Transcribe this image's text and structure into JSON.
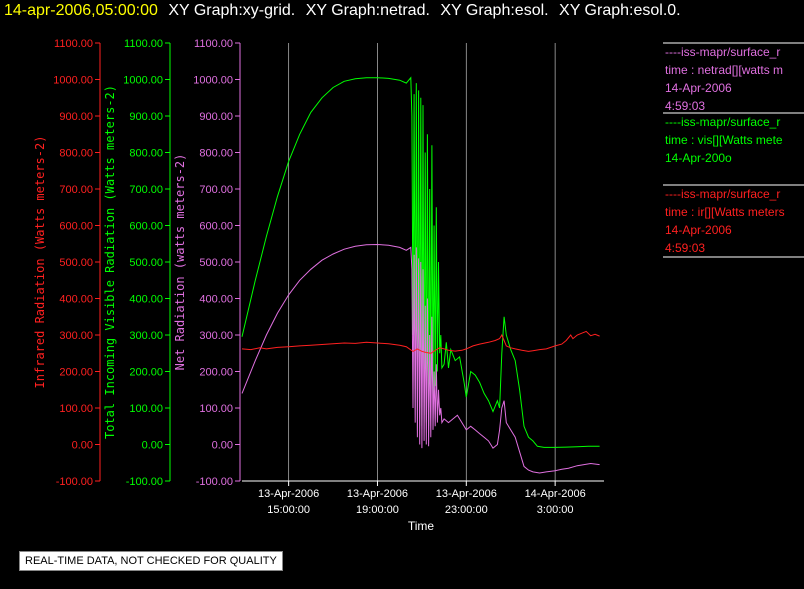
{
  "header": {
    "timestamp": "14-apr-2006,05:00:00",
    "titles": [
      "XY Graph:xy-grid.",
      "XY Graph:netrad.",
      "XY Graph:esol.",
      "XY Graph:esol.0."
    ]
  },
  "footer_note": "REAL-TIME DATA, NOT CHECKED FOR QUALITY",
  "legend": [
    {
      "color": "#e070e0",
      "lines": [
        "----iss-mapr/surface_r",
        "time : netrad[][watts m",
        "14-Apr-2006",
        "4:59:03"
      ]
    },
    {
      "color": "#00ff00",
      "lines": [
        "----iss-mapr/surface_r",
        "time : vis[][Watts mete",
        "14-Apr-200o"
      ]
    },
    {
      "color": "#ff2020",
      "lines": [
        "----iss-mapr/surface_r",
        "time : ir[][Watts meters",
        "14-Apr-2006",
        "4:59:03"
      ]
    }
  ],
  "colors": {
    "ir": "#ff2020",
    "vis": "#00ff00",
    "net": "#e070e0",
    "grid": "#aaaaaa"
  },
  "chart_data": {
    "type": "line",
    "xlabel": "Time",
    "x_units": "hours since 13-Apr-2006 00:00",
    "xlim": [
      12.9,
      29.2
    ],
    "x_ticks": [
      {
        "value": 15,
        "line1": "13-Apr-2006",
        "line2": "15:00:00"
      },
      {
        "value": 19,
        "line1": "13-Apr-2006",
        "line2": "19:00:00"
      },
      {
        "value": 23,
        "line1": "13-Apr-2006",
        "line2": "23:00:00"
      },
      {
        "value": 27,
        "line1": "14-Apr-2006",
        "line2": "3:00:00"
      }
    ],
    "grid": true,
    "ylim": [
      -100,
      1100
    ],
    "y_ticks": [
      "1100.00",
      "1000.00",
      "900.00",
      "800.00",
      "700.00",
      "600.00",
      "500.00",
      "400.00",
      "300.00",
      "200.00",
      "100.00",
      "0.00",
      "-100.00"
    ],
    "y_axes": [
      {
        "label": "Infrared Radiation (Watts meters-2)",
        "color": "#ff2020"
      },
      {
        "label": "Total Incoming Visible Radiation (Watts meters-2)",
        "color": "#00ff00"
      },
      {
        "label": "Net Radiation (watts meters-2)",
        "color": "#e070e0"
      }
    ],
    "series": [
      {
        "key": "vis",
        "color": "#00ff00",
        "points": [
          [
            12.9,
            295
          ],
          [
            13.5,
            450
          ],
          [
            14.0,
            570
          ],
          [
            14.5,
            680
          ],
          [
            15.0,
            775
          ],
          [
            15.5,
            850
          ],
          [
            16.0,
            910
          ],
          [
            16.5,
            950
          ],
          [
            17.0,
            978
          ],
          [
            17.5,
            995
          ],
          [
            18.0,
            1002
          ],
          [
            18.5,
            1005
          ],
          [
            19.0,
            1005
          ],
          [
            19.5,
            1003
          ],
          [
            20.0,
            998
          ],
          [
            20.3,
            990
          ],
          [
            20.5,
            1005
          ],
          [
            20.55,
            900
          ],
          [
            20.6,
            300
          ],
          [
            20.65,
            960
          ],
          [
            20.7,
            200
          ],
          [
            20.75,
            990
          ],
          [
            20.8,
            150
          ],
          [
            20.85,
            970
          ],
          [
            20.9,
            100
          ],
          [
            20.95,
            950
          ],
          [
            21.0,
            50
          ],
          [
            21.05,
            930
          ],
          [
            21.1,
            80
          ],
          [
            21.15,
            800
          ],
          [
            21.2,
            60
          ],
          [
            21.25,
            850
          ],
          [
            21.3,
            50
          ],
          [
            21.35,
            700
          ],
          [
            21.4,
            90
          ],
          [
            21.45,
            820
          ],
          [
            21.5,
            130
          ],
          [
            21.55,
            600
          ],
          [
            21.6,
            160
          ],
          [
            21.65,
            650
          ],
          [
            21.7,
            200
          ],
          [
            21.75,
            500
          ],
          [
            21.8,
            250
          ],
          [
            21.85,
            300
          ],
          [
            21.9,
            210
          ],
          [
            22.0,
            220
          ],
          [
            22.1,
            280
          ],
          [
            22.2,
            210
          ],
          [
            22.3,
            260
          ],
          [
            22.5,
            230
          ],
          [
            22.7,
            240
          ],
          [
            22.9,
            170
          ],
          [
            23.0,
            130
          ],
          [
            23.2,
            200
          ],
          [
            23.4,
            190
          ],
          [
            23.6,
            170
          ],
          [
            23.8,
            140
          ],
          [
            24.0,
            120
          ],
          [
            24.2,
            90
          ],
          [
            24.4,
            120
          ],
          [
            24.5,
            100
          ],
          [
            24.6,
            250
          ],
          [
            24.7,
            350
          ],
          [
            24.8,
            300
          ],
          [
            24.9,
            280
          ],
          [
            25.0,
            260
          ],
          [
            25.2,
            230
          ],
          [
            25.4,
            150
          ],
          [
            25.6,
            50
          ],
          [
            25.8,
            20
          ],
          [
            26.0,
            10
          ],
          [
            26.2,
            -5
          ],
          [
            26.5,
            -8
          ],
          [
            27.0,
            -8
          ],
          [
            27.5,
            -7
          ],
          [
            28.0,
            -6
          ],
          [
            28.5,
            -5
          ],
          [
            29.0,
            -5
          ]
        ]
      },
      {
        "key": "net",
        "color": "#e070e0",
        "points": [
          [
            12.9,
            140
          ],
          [
            13.5,
            230
          ],
          [
            14.0,
            300
          ],
          [
            14.5,
            360
          ],
          [
            15.0,
            410
          ],
          [
            15.5,
            450
          ],
          [
            16.0,
            480
          ],
          [
            16.5,
            505
          ],
          [
            17.0,
            522
          ],
          [
            17.5,
            535
          ],
          [
            18.0,
            543
          ],
          [
            18.5,
            547
          ],
          [
            19.0,
            548
          ],
          [
            19.5,
            546
          ],
          [
            20.0,
            540
          ],
          [
            20.3,
            532
          ],
          [
            20.5,
            540
          ],
          [
            20.55,
            480
          ],
          [
            20.6,
            100
          ],
          [
            20.65,
            520
          ],
          [
            20.7,
            60
          ],
          [
            20.75,
            540
          ],
          [
            20.8,
            20
          ],
          [
            20.85,
            510
          ],
          [
            20.9,
            0
          ],
          [
            20.95,
            500
          ],
          [
            21.0,
            -10
          ],
          [
            21.05,
            480
          ],
          [
            21.1,
            10
          ],
          [
            21.15,
            380
          ],
          [
            21.2,
            0
          ],
          [
            21.25,
            400
          ],
          [
            21.3,
            -5
          ],
          [
            21.35,
            300
          ],
          [
            21.4,
            20
          ],
          [
            21.45,
            350
          ],
          [
            21.5,
            40
          ],
          [
            21.55,
            200
          ],
          [
            21.6,
            50
          ],
          [
            21.65,
            220
          ],
          [
            21.7,
            60
          ],
          [
            21.75,
            150
          ],
          [
            21.8,
            80
          ],
          [
            21.85,
            100
          ],
          [
            21.9,
            60
          ],
          [
            22.0,
            70
          ],
          [
            22.2,
            60
          ],
          [
            22.4,
            70
          ],
          [
            22.6,
            80
          ],
          [
            22.8,
            60
          ],
          [
            23.0,
            40
          ],
          [
            23.2,
            50
          ],
          [
            23.4,
            40
          ],
          [
            23.6,
            30
          ],
          [
            23.8,
            20
          ],
          [
            24.0,
            10
          ],
          [
            24.2,
            -10
          ],
          [
            24.4,
            0
          ],
          [
            24.5,
            40
          ],
          [
            24.6,
            100
          ],
          [
            24.7,
            120
          ],
          [
            24.8,
            60
          ],
          [
            25.0,
            40
          ],
          [
            25.2,
            20
          ],
          [
            25.4,
            -20
          ],
          [
            25.6,
            -60
          ],
          [
            25.8,
            -70
          ],
          [
            26.0,
            -75
          ],
          [
            26.3,
            -78
          ],
          [
            26.6,
            -75
          ],
          [
            27.0,
            -72
          ],
          [
            27.3,
            -68
          ],
          [
            27.6,
            -65
          ],
          [
            28.0,
            -58
          ],
          [
            28.3,
            -55
          ],
          [
            28.6,
            -52
          ],
          [
            29.0,
            -55
          ]
        ]
      },
      {
        "key": "ir",
        "color": "#ff2020",
        "points": [
          [
            12.9,
            262
          ],
          [
            13.3,
            260
          ],
          [
            13.7,
            265
          ],
          [
            14.0,
            262
          ],
          [
            14.5,
            266
          ],
          [
            15.0,
            268
          ],
          [
            15.5,
            270
          ],
          [
            16.0,
            272
          ],
          [
            16.5,
            274
          ],
          [
            17.0,
            276
          ],
          [
            17.5,
            278
          ],
          [
            18.0,
            277
          ],
          [
            18.5,
            280
          ],
          [
            19.0,
            278
          ],
          [
            19.5,
            276
          ],
          [
            20.0,
            272
          ],
          [
            20.3,
            268
          ],
          [
            20.6,
            255
          ],
          [
            20.8,
            262
          ],
          [
            21.0,
            255
          ],
          [
            21.2,
            252
          ],
          [
            21.4,
            250
          ],
          [
            21.6,
            258
          ],
          [
            21.8,
            265
          ],
          [
            22.0,
            262
          ],
          [
            22.2,
            258
          ],
          [
            22.5,
            256
          ],
          [
            22.8,
            258
          ],
          [
            23.0,
            262
          ],
          [
            23.3,
            270
          ],
          [
            23.6,
            275
          ],
          [
            24.0,
            280
          ],
          [
            24.3,
            285
          ],
          [
            24.5,
            290
          ],
          [
            24.6,
            300
          ],
          [
            24.7,
            285
          ],
          [
            24.8,
            270
          ],
          [
            25.0,
            265
          ],
          [
            25.2,
            262
          ],
          [
            25.5,
            258
          ],
          [
            25.8,
            255
          ],
          [
            26.0,
            257
          ],
          [
            26.3,
            260
          ],
          [
            26.6,
            262
          ],
          [
            27.0,
            270
          ],
          [
            27.3,
            275
          ],
          [
            27.5,
            285
          ],
          [
            27.7,
            300
          ],
          [
            27.8,
            290
          ],
          [
            28.0,
            300
          ],
          [
            28.2,
            305
          ],
          [
            28.4,
            310
          ],
          [
            28.6,
            298
          ],
          [
            28.8,
            302
          ],
          [
            29.0,
            297
          ]
        ]
      }
    ]
  }
}
